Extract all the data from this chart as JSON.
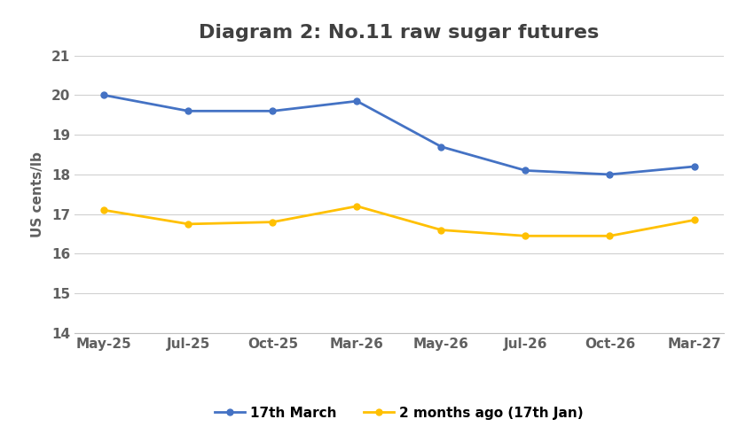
{
  "title": "Diagram 2: No.11 raw sugar futures",
  "xlabel": "",
  "ylabel": "US cents/lb",
  "x_labels": [
    "May-25",
    "Jul-25",
    "Oct-25",
    "Mar-26",
    "May-26",
    "Jul-26",
    "Oct-26",
    "Mar-27"
  ],
  "series": [
    {
      "name": "17th March",
      "color": "#4472C4",
      "values": [
        20.0,
        19.6,
        19.6,
        19.85,
        18.7,
        18.1,
        18.0,
        18.2
      ]
    },
    {
      "name": "2 months ago (17th Jan)",
      "color": "#FFC000",
      "values": [
        17.1,
        16.75,
        16.8,
        17.2,
        16.6,
        16.45,
        16.45,
        16.85
      ]
    }
  ],
  "ylim": [
    14,
    21
  ],
  "yticks": [
    14,
    15,
    16,
    17,
    18,
    19,
    20,
    21
  ],
  "grid_color": "#D0D0D0",
  "background_color": "#FFFFFF",
  "title_fontsize": 16,
  "axis_fontsize": 11,
  "tick_fontsize": 11,
  "legend_fontsize": 11,
  "line_width": 2.0,
  "marker": "o",
  "marker_size": 5,
  "title_color": "#404040",
  "tick_color": "#606060",
  "spine_color": "#C0C0C0"
}
